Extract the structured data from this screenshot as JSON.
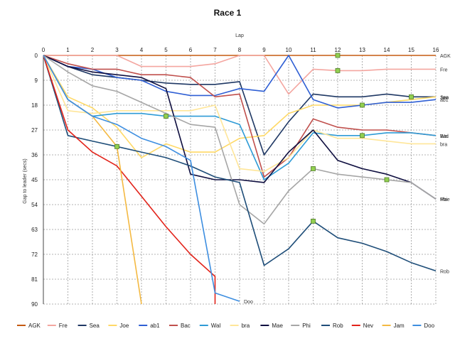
{
  "chart_data": {
    "type": "line",
    "title": "Race 1",
    "xlabel": "Lap",
    "ylabel": "Gap to leader (secs)",
    "xlim": [
      0,
      16
    ],
    "ylim": [
      0,
      90
    ],
    "y_inverted": true,
    "x_ticks": [
      "0",
      "1",
      "2",
      "3",
      "4",
      "5",
      "6",
      "7",
      "8",
      "9",
      "10",
      "11",
      "12",
      "13",
      "14",
      "15",
      "16"
    ],
    "y_ticks": [
      "0",
      "9",
      "18",
      "27",
      "36",
      "45",
      "54",
      "63",
      "72",
      "81",
      "90"
    ],
    "grid": true,
    "legend_position": "bottom",
    "series": [
      {
        "name": "AGK",
        "color": "#c55a11",
        "end_label": "AGK",
        "values": [
          [
            0,
            0
          ],
          [
            1,
            0
          ],
          [
            2,
            0
          ],
          [
            3,
            0
          ],
          [
            4,
            0
          ],
          [
            5,
            0
          ],
          [
            6,
            0
          ],
          [
            7,
            0
          ],
          [
            8,
            0
          ],
          [
            9,
            0
          ],
          [
            10,
            0
          ],
          [
            11,
            0
          ],
          [
            12,
            0
          ],
          [
            13,
            0
          ],
          [
            14,
            0
          ],
          [
            15,
            0
          ],
          [
            16,
            0
          ]
        ],
        "markers": [
          12
        ]
      },
      {
        "name": "Fre",
        "color": "#f4a6a0",
        "end_label": "Fre",
        "values": [
          [
            0,
            0
          ],
          [
            1,
            0
          ],
          [
            2,
            0
          ],
          [
            3,
            0
          ],
          [
            4,
            4
          ],
          [
            5,
            4
          ],
          [
            6,
            4
          ],
          [
            7,
            3
          ],
          [
            8,
            0
          ],
          [
            9,
            0
          ],
          [
            10,
            14
          ],
          [
            11,
            5
          ],
          [
            12,
            5.5
          ],
          [
            13,
            5.5
          ],
          [
            14,
            5
          ],
          [
            15,
            5
          ],
          [
            16,
            5
          ]
        ],
        "markers": [
          12
        ]
      },
      {
        "name": "Sea",
        "color": "#1f3864",
        "end_label": "Sea",
        "values": [
          [
            0,
            0
          ],
          [
            1,
            4
          ],
          [
            2,
            7
          ],
          [
            3,
            8
          ],
          [
            4,
            9
          ],
          [
            5,
            10
          ],
          [
            6,
            10.5
          ],
          [
            7,
            10.5
          ],
          [
            8,
            9.5
          ],
          [
            9,
            36
          ],
          [
            10,
            24
          ],
          [
            11,
            14
          ],
          [
            12,
            15
          ],
          [
            13,
            15
          ],
          [
            14,
            14
          ],
          [
            15,
            15
          ],
          [
            16,
            15
          ]
        ],
        "markers": [
          15
        ]
      },
      {
        "name": "Joe",
        "color": "#ffd966",
        "end_label": "Joe",
        "values": [
          [
            0,
            0
          ],
          [
            1,
            15
          ],
          [
            2,
            19
          ],
          [
            3,
            26
          ],
          [
            4,
            37
          ],
          [
            5,
            32
          ],
          [
            6,
            35
          ],
          [
            7,
            35
          ],
          [
            8,
            30
          ],
          [
            9,
            29
          ],
          [
            10,
            21
          ],
          [
            11,
            18
          ],
          [
            12,
            18
          ],
          [
            13,
            18
          ],
          [
            14,
            17
          ],
          [
            15,
            16
          ],
          [
            16,
            15
          ]
        ],
        "markers": []
      },
      {
        "name": "ab1",
        "color": "#2f5fd4",
        "end_label": "ab1",
        "values": [
          [
            0,
            0
          ],
          [
            1,
            4
          ],
          [
            2,
            5
          ],
          [
            3,
            8
          ],
          [
            4,
            9
          ],
          [
            5,
            13
          ],
          [
            6,
            14.5
          ],
          [
            7,
            14.5
          ],
          [
            8,
            12
          ],
          [
            9,
            13
          ],
          [
            10,
            0
          ],
          [
            11,
            16
          ],
          [
            12,
            19
          ],
          [
            13,
            18
          ],
          [
            14,
            17
          ],
          [
            15,
            17
          ],
          [
            16,
            16
          ]
        ],
        "markers": [
          13
        ]
      },
      {
        "name": "Bac",
        "color": "#c0504d",
        "end_label": "Bac",
        "values": [
          [
            0,
            0
          ],
          [
            1,
            3
          ],
          [
            2,
            5
          ],
          [
            3,
            5
          ],
          [
            4,
            7
          ],
          [
            5,
            7
          ],
          [
            6,
            8
          ],
          [
            7,
            15
          ],
          [
            8,
            14
          ],
          [
            9,
            44
          ],
          [
            10,
            37
          ],
          [
            11,
            23
          ],
          [
            12,
            26
          ],
          [
            13,
            27
          ],
          [
            14,
            27
          ],
          [
            15,
            28
          ],
          [
            16,
            29
          ]
        ],
        "markers": []
      },
      {
        "name": "Wal",
        "color": "#2e9bd6",
        "end_label": "Wal",
        "values": [
          [
            0,
            0
          ],
          [
            1,
            16
          ],
          [
            2,
            22
          ],
          [
            3,
            21
          ],
          [
            4,
            21
          ],
          [
            5,
            22
          ],
          [
            6,
            22
          ],
          [
            7,
            22
          ],
          [
            8,
            25
          ],
          [
            9,
            45
          ],
          [
            10,
            39
          ],
          [
            11,
            28
          ],
          [
            12,
            29
          ],
          [
            13,
            29
          ],
          [
            14,
            28
          ],
          [
            15,
            28
          ],
          [
            16,
            29
          ]
        ],
        "markers": [
          5,
          13
        ]
      },
      {
        "name": "bra",
        "color": "#ffe699",
        "end_label": "bra",
        "values": [
          [
            0,
            0
          ],
          [
            1,
            20
          ],
          [
            2,
            21
          ],
          [
            3,
            20
          ],
          [
            4,
            20
          ],
          [
            5,
            20
          ],
          [
            6,
            20
          ],
          [
            7,
            18
          ],
          [
            8,
            41
          ],
          [
            9,
            42
          ],
          [
            10,
            37
          ],
          [
            11,
            27
          ],
          [
            12,
            30
          ],
          [
            13,
            30
          ],
          [
            14,
            31
          ],
          [
            15,
            32
          ],
          [
            16,
            32
          ]
        ],
        "markers": []
      },
      {
        "name": "Mae",
        "color": "#0f0f40",
        "end_label": "Mae",
        "values": [
          [
            0,
            0
          ],
          [
            1,
            4
          ],
          [
            2,
            6
          ],
          [
            3,
            7
          ],
          [
            4,
            8
          ],
          [
            5,
            12
          ],
          [
            6,
            43
          ],
          [
            7,
            45
          ],
          [
            8,
            45
          ],
          [
            9,
            46
          ],
          [
            10,
            35
          ],
          [
            11,
            27
          ],
          [
            12,
            38
          ],
          [
            13,
            41
          ],
          [
            14,
            43
          ],
          [
            15,
            46
          ],
          [
            16,
            52
          ]
        ],
        "markers": []
      },
      {
        "name": "Phi",
        "color": "#a6a6a6",
        "end_label": "Phi",
        "values": [
          [
            0,
            0
          ],
          [
            1,
            6
          ],
          [
            2,
            11
          ],
          [
            3,
            13
          ],
          [
            4,
            17
          ],
          [
            5,
            21
          ],
          [
            6,
            25
          ],
          [
            7,
            26
          ],
          [
            8,
            54
          ],
          [
            9,
            61
          ],
          [
            10,
            49
          ],
          [
            11,
            41
          ],
          [
            12,
            43
          ],
          [
            13,
            44
          ],
          [
            14,
            45
          ],
          [
            15,
            46
          ],
          [
            16,
            52
          ]
        ],
        "markers": [
          11,
          14
        ]
      },
      {
        "name": "Rob",
        "color": "#1f4e79",
        "end_label": "Rob",
        "values": [
          [
            0,
            0
          ],
          [
            1,
            29
          ],
          [
            2,
            31
          ],
          [
            3,
            33
          ],
          [
            4,
            35
          ],
          [
            5,
            37
          ],
          [
            6,
            40
          ],
          [
            7,
            44
          ],
          [
            8,
            46
          ],
          [
            9,
            76
          ],
          [
            10,
            70
          ],
          [
            11,
            60
          ],
          [
            12,
            66
          ],
          [
            13,
            68
          ],
          [
            14,
            71
          ],
          [
            15,
            75
          ],
          [
            16,
            78
          ]
        ],
        "markers": [
          11
        ]
      },
      {
        "name": "Nev",
        "color": "#e2231a",
        "end_label": "",
        "values": [
          [
            0,
            0
          ],
          [
            1,
            27
          ],
          [
            2,
            35
          ],
          [
            3,
            40
          ],
          [
            4,
            51
          ],
          [
            5,
            62
          ],
          [
            6,
            72
          ],
          [
            7,
            80
          ],
          [
            7,
            90
          ]
        ],
        "markers": []
      },
      {
        "name": "Jam",
        "color": "#f4b942",
        "end_label": "",
        "values": [
          [
            0,
            0
          ],
          [
            1,
            16
          ],
          [
            2,
            22
          ],
          [
            3,
            33
          ],
          [
            4,
            90
          ]
        ],
        "markers": [
          3
        ]
      },
      {
        "name": "Doo",
        "color": "#3d8ee0",
        "end_label": "Doo",
        "values": [
          [
            0,
            0
          ],
          [
            1,
            16
          ],
          [
            2,
            22
          ],
          [
            3,
            25
          ],
          [
            4,
            30
          ],
          [
            5,
            33
          ],
          [
            6,
            38
          ],
          [
            7,
            86
          ],
          [
            8,
            89
          ]
        ],
        "markers": []
      }
    ]
  }
}
